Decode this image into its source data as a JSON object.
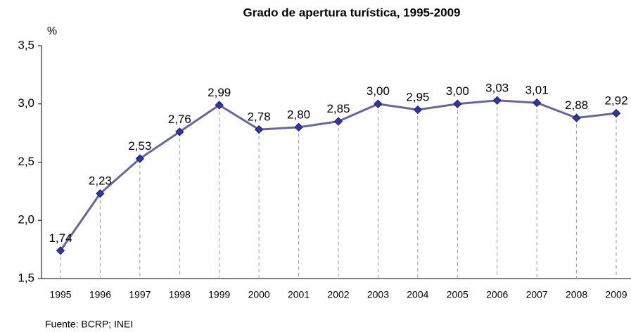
{
  "chart_data": {
    "type": "line",
    "title": "Grado de apertura turística, 1995-2009",
    "ylabel": "%",
    "source": "Fuente: BCRP; INEI",
    "categories": [
      "1995",
      "1996",
      "1997",
      "1998",
      "1999",
      "2000",
      "2001",
      "2002",
      "2003",
      "2004",
      "2005",
      "2006",
      "2007",
      "2008",
      "2009"
    ],
    "series": [
      {
        "name": "Grado de apertura turística",
        "color": "#666699",
        "values": [
          1.74,
          2.23,
          2.53,
          2.76,
          2.99,
          2.78,
          2.8,
          2.85,
          3.0,
          2.95,
          3.0,
          3.03,
          3.01,
          2.88,
          2.92
        ],
        "value_labels": [
          "1,74",
          "2,23",
          "2,53",
          "2,76",
          "2,99",
          "2,78",
          "2,80",
          "2,85",
          "3,00",
          "2,95",
          "3,00",
          "3,03",
          "3,01",
          "2,88",
          "2,92"
        ]
      }
    ],
    "marker_color": "#3333aa",
    "ylim": [
      1.5,
      3.5
    ],
    "yticks": [
      {
        "value": 1.5,
        "label": "1,5"
      },
      {
        "value": 2.0,
        "label": "2,0"
      },
      {
        "value": 2.5,
        "label": "2,5"
      },
      {
        "value": 3.0,
        "label": "3,0"
      },
      {
        "value": 3.5,
        "label": "3,5"
      }
    ]
  }
}
